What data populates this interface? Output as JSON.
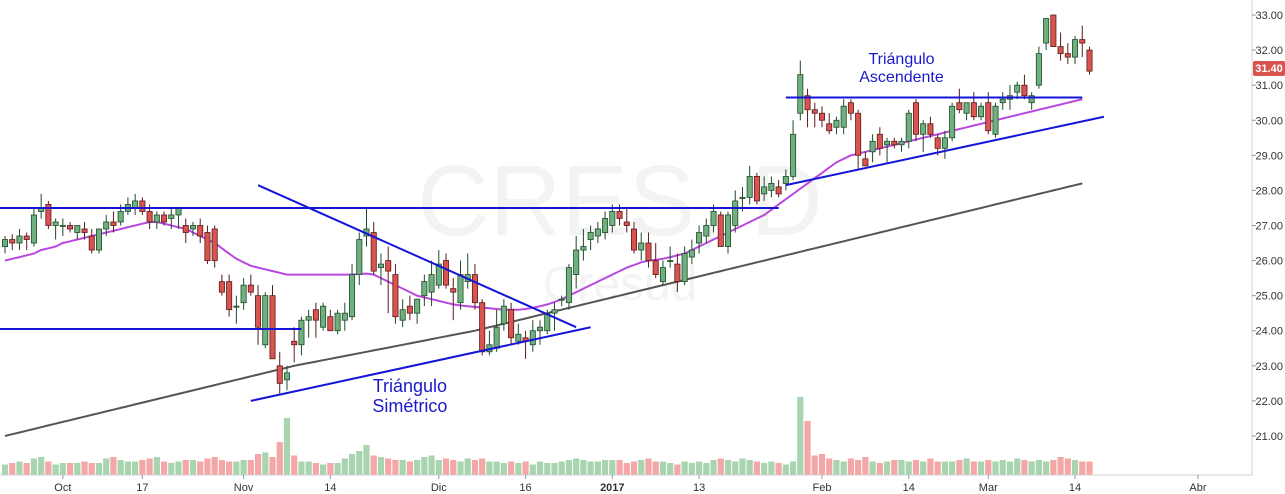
{
  "chart_data": {
    "type": "candlestick",
    "watermark": {
      "symbol": "CRES, D",
      "name": "Cresud"
    },
    "last_price_label": "31.40",
    "ylim": [
      20.6,
      33.2
    ],
    "y_ticks": [
      "21.00",
      "22.00",
      "23.00",
      "24.00",
      "25.00",
      "26.00",
      "27.00",
      "28.00",
      "29.00",
      "30.00",
      "31.00",
      "32.00",
      "33.00"
    ],
    "x_ticks": [
      {
        "i": 8,
        "label": "Oct"
      },
      {
        "i": 19,
        "label": "17"
      },
      {
        "i": 33,
        "label": "Nov"
      },
      {
        "i": 45,
        "label": "14"
      },
      {
        "i": 60,
        "label": "Dic"
      },
      {
        "i": 72,
        "label": "16"
      },
      {
        "i": 84,
        "label": "2017"
      },
      {
        "i": 96,
        "label": "13"
      },
      {
        "i": 113,
        "label": "Feb"
      },
      {
        "i": 125,
        "label": "14"
      },
      {
        "i": 136,
        "label": "Mar"
      },
      {
        "i": 148,
        "label": "14"
      },
      {
        "i": 165,
        "label": "Abr"
      }
    ],
    "candles": [
      [
        26.4,
        26.7,
        26.2,
        26.6
      ],
      [
        26.6,
        26.75,
        26.3,
        26.5
      ],
      [
        26.5,
        26.9,
        26.3,
        26.7
      ],
      [
        26.7,
        26.8,
        26.3,
        26.6
      ],
      [
        26.5,
        27.5,
        26.4,
        27.3
      ],
      [
        27.4,
        27.9,
        27.2,
        27.5
      ],
      [
        27.6,
        27.7,
        26.9,
        27.0
      ],
      [
        27.0,
        27.2,
        26.6,
        27.1
      ],
      [
        27.0,
        27.2,
        26.7,
        27.0
      ],
      [
        27.0,
        27.1,
        26.8,
        26.9
      ],
      [
        26.8,
        27.0,
        26.6,
        27.0
      ],
      [
        26.9,
        27.1,
        26.6,
        26.8
      ],
      [
        26.7,
        26.9,
        26.2,
        26.3
      ],
      [
        26.3,
        26.9,
        26.2,
        26.9
      ],
      [
        26.9,
        27.3,
        26.7,
        27.1
      ],
      [
        27.1,
        27.4,
        26.8,
        27.0
      ],
      [
        27.1,
        27.6,
        27.0,
        27.4
      ],
      [
        27.4,
        27.8,
        27.3,
        27.6
      ],
      [
        27.5,
        27.9,
        27.3,
        27.7
      ],
      [
        27.7,
        27.8,
        27.3,
        27.4
      ],
      [
        27.4,
        27.6,
        26.9,
        27.1
      ],
      [
        27.1,
        27.4,
        26.9,
        27.3
      ],
      [
        27.3,
        27.4,
        27.0,
        27.1
      ],
      [
        27.2,
        27.5,
        26.9,
        27.3
      ],
      [
        27.3,
        27.5,
        26.9,
        27.5
      ],
      [
        27.0,
        27.2,
        26.5,
        26.8
      ],
      [
        26.9,
        27.1,
        26.7,
        27.0
      ],
      [
        27.0,
        27.2,
        26.5,
        26.7
      ],
      [
        26.8,
        27.0,
        25.9,
        26.0
      ],
      [
        26.9,
        27.0,
        25.8,
        26.0
      ],
      [
        25.4,
        25.6,
        25.0,
        25.1
      ],
      [
        25.4,
        25.6,
        24.4,
        24.6
      ],
      [
        24.7,
        25.0,
        24.2,
        24.7
      ],
      [
        24.8,
        25.5,
        24.6,
        25.3
      ],
      [
        25.3,
        25.6,
        25.0,
        25.1
      ],
      [
        25.0,
        25.3,
        23.6,
        24.1
      ],
      [
        23.6,
        25.1,
        23.5,
        25.0
      ],
      [
        25.0,
        25.3,
        23.2,
        23.2
      ],
      [
        23.0,
        23.4,
        22.2,
        22.5
      ],
      [
        22.6,
        23.0,
        22.3,
        22.8
      ],
      [
        23.7,
        24.1,
        23.1,
        23.6
      ],
      [
        23.6,
        24.4,
        23.3,
        24.3
      ],
      [
        24.3,
        24.6,
        23.8,
        24.4
      ],
      [
        24.6,
        24.8,
        23.8,
        24.3
      ],
      [
        24.1,
        24.8,
        24.0,
        24.7
      ],
      [
        24.4,
        24.6,
        24.0,
        24.0
      ],
      [
        24.0,
        24.6,
        23.9,
        24.5
      ],
      [
        24.3,
        24.8,
        24.0,
        24.5
      ],
      [
        24.4,
        25.9,
        24.3,
        25.6
      ],
      [
        25.6,
        26.8,
        25.3,
        26.6
      ],
      [
        26.7,
        27.5,
        26.4,
        26.9
      ],
      [
        26.8,
        27.1,
        25.6,
        25.7
      ],
      [
        25.8,
        26.2,
        25.3,
        25.9
      ],
      [
        26.0,
        26.4,
        24.5,
        25.7
      ],
      [
        25.6,
        25.9,
        24.2,
        24.4
      ],
      [
        24.3,
        24.9,
        24.1,
        24.6
      ],
      [
        24.7,
        25.0,
        24.3,
        24.5
      ],
      [
        24.5,
        24.9,
        24.2,
        24.9
      ],
      [
        25.0,
        25.6,
        24.7,
        25.4
      ],
      [
        25.1,
        26.0,
        24.7,
        25.6
      ],
      [
        25.3,
        26.3,
        25.2,
        25.9
      ],
      [
        26.0,
        26.2,
        25.2,
        25.3
      ],
      [
        25.2,
        25.5,
        24.3,
        25.1
      ],
      [
        24.8,
        26.0,
        24.6,
        25.6
      ],
      [
        25.4,
        26.2,
        25.2,
        25.6
      ],
      [
        25.6,
        25.9,
        24.6,
        24.8
      ],
      [
        24.8,
        24.9,
        23.3,
        23.4
      ],
      [
        23.4,
        24.0,
        23.3,
        23.6
      ],
      [
        23.5,
        24.6,
        23.4,
        24.1
      ],
      [
        24.2,
        24.9,
        24.0,
        24.7
      ],
      [
        24.6,
        24.8,
        23.6,
        23.8
      ],
      [
        23.7,
        24.2,
        23.6,
        23.9
      ],
      [
        23.8,
        24.0,
        23.2,
        23.7
      ],
      [
        23.6,
        24.3,
        23.4,
        24.0
      ],
      [
        24.0,
        24.3,
        23.6,
        24.1
      ],
      [
        24.0,
        24.6,
        23.9,
        24.5
      ],
      [
        24.5,
        24.8,
        24.0,
        24.6
      ],
      [
        24.9,
        25.0,
        24.7,
        24.9
      ],
      [
        24.8,
        25.9,
        24.6,
        25.8
      ],
      [
        25.6,
        26.7,
        25.2,
        26.3
      ],
      [
        26.3,
        26.9,
        26.0,
        26.4
      ],
      [
        26.6,
        27.0,
        26.3,
        26.8
      ],
      [
        26.7,
        27.1,
        26.5,
        26.9
      ],
      [
        26.8,
        27.4,
        26.6,
        27.2
      ],
      [
        27.0,
        27.6,
        26.8,
        27.4
      ],
      [
        27.4,
        27.6,
        27.0,
        27.2
      ],
      [
        27.1,
        27.5,
        26.8,
        27.0
      ],
      [
        26.9,
        27.1,
        26.2,
        26.3
      ],
      [
        26.3,
        26.8,
        26.0,
        26.5
      ],
      [
        26.5,
        26.8,
        25.8,
        26.0
      ],
      [
        26.0,
        26.5,
        25.5,
        25.6
      ],
      [
        25.4,
        26.0,
        25.3,
        25.8
      ],
      [
        26.0,
        26.4,
        25.8,
        26.0
      ],
      [
        25.9,
        26.2,
        25.1,
        25.4
      ],
      [
        25.4,
        26.4,
        25.3,
        26.2
      ],
      [
        26.1,
        26.6,
        25.9,
        26.3
      ],
      [
        26.5,
        27.0,
        26.2,
        26.8
      ],
      [
        26.7,
        27.2,
        26.5,
        27.0
      ],
      [
        27.0,
        27.6,
        26.8,
        27.4
      ],
      [
        27.3,
        27.4,
        26.4,
        26.4
      ],
      [
        26.4,
        27.4,
        26.2,
        27.3
      ],
      [
        27.0,
        28.0,
        26.8,
        27.7
      ],
      [
        27.8,
        28.1,
        27.4,
        27.8
      ],
      [
        27.8,
        28.7,
        27.6,
        28.4
      ],
      [
        28.4,
        28.5,
        27.6,
        27.7
      ],
      [
        27.9,
        28.4,
        27.7,
        28.1
      ],
      [
        28.0,
        28.4,
        27.8,
        28.2
      ],
      [
        28.1,
        28.3,
        27.8,
        27.9
      ],
      [
        28.2,
        28.6,
        28.0,
        28.4
      ],
      [
        28.4,
        30.0,
        28.3,
        29.6
      ],
      [
        30.2,
        31.7,
        30.0,
        31.3
      ],
      [
        30.7,
        30.9,
        29.8,
        30.3
      ],
      [
        30.3,
        30.5,
        29.8,
        30.2
      ],
      [
        30.2,
        30.4,
        29.8,
        30.0
      ],
      [
        29.9,
        30.2,
        29.6,
        29.7
      ],
      [
        29.8,
        30.1,
        29.6,
        30.0
      ],
      [
        29.8,
        30.6,
        29.6,
        30.4
      ],
      [
        30.5,
        30.6,
        30.0,
        30.2
      ],
      [
        30.2,
        30.3,
        28.6,
        29.0
      ],
      [
        28.9,
        29.1,
        28.7,
        28.7
      ],
      [
        29.1,
        29.6,
        28.8,
        29.4
      ],
      [
        29.6,
        29.8,
        29.0,
        29.2
      ],
      [
        29.3,
        29.5,
        28.8,
        29.4
      ],
      [
        29.4,
        29.5,
        29.2,
        29.3
      ],
      [
        29.3,
        29.5,
        29.1,
        29.4
      ],
      [
        29.4,
        30.3,
        29.2,
        30.2
      ],
      [
        30.5,
        30.6,
        29.4,
        29.6
      ],
      [
        29.6,
        30.0,
        29.1,
        29.9
      ],
      [
        29.9,
        30.1,
        29.5,
        29.6
      ],
      [
        29.5,
        29.6,
        29.0,
        29.2
      ],
      [
        29.2,
        29.7,
        28.9,
        29.5
      ],
      [
        29.5,
        30.5,
        29.4,
        30.4
      ],
      [
        30.5,
        30.9,
        30.2,
        30.3
      ],
      [
        30.2,
        30.5,
        30.0,
        30.5
      ],
      [
        30.5,
        30.8,
        30.0,
        30.1
      ],
      [
        30.1,
        30.5,
        30.0,
        30.4
      ],
      [
        30.5,
        30.8,
        29.6,
        29.7
      ],
      [
        29.6,
        30.5,
        29.5,
        30.4
      ],
      [
        30.5,
        30.8,
        30.3,
        30.6
      ],
      [
        30.6,
        31.0,
        30.3,
        30.7
      ],
      [
        30.8,
        31.1,
        30.6,
        31.0
      ],
      [
        31.0,
        31.3,
        30.6,
        30.7
      ],
      [
        30.5,
        30.8,
        30.3,
        30.7
      ],
      [
        31.0,
        32.1,
        30.9,
        31.9
      ],
      [
        32.2,
        32.9,
        32.0,
        32.9
      ],
      [
        33.0,
        33.0,
        32.1,
        32.1
      ],
      [
        32.1,
        32.5,
        31.7,
        31.9
      ],
      [
        31.9,
        32.2,
        31.6,
        31.8
      ],
      [
        31.8,
        32.4,
        31.6,
        32.3
      ],
      [
        32.3,
        32.7,
        31.8,
        32.2
      ],
      [
        32.0,
        32.1,
        31.3,
        31.4
      ]
    ],
    "volume": [
      7,
      8,
      9,
      8,
      11,
      12,
      9,
      7,
      8,
      8,
      8,
      9,
      8,
      8,
      11,
      12,
      10,
      9,
      9,
      10,
      11,
      12,
      9,
      8,
      9,
      10,
      10,
      9,
      11,
      12,
      10,
      9,
      9,
      10,
      10,
      14,
      15,
      12,
      22,
      38,
      13,
      9,
      9,
      8,
      7,
      8,
      8,
      11,
      14,
      16,
      20,
      13,
      12,
      11,
      10,
      10,
      9,
      10,
      12,
      13,
      10,
      11,
      10,
      9,
      11,
      10,
      11,
      9,
      9,
      8,
      9,
      8,
      9,
      7,
      9,
      8,
      8,
      9,
      10,
      11,
      10,
      9,
      9,
      10,
      10,
      10,
      8,
      9,
      10,
      11,
      9,
      9,
      8,
      7,
      9,
      8,
      9,
      8,
      10,
      11,
      10,
      9,
      11,
      10,
      9,
      8,
      9,
      8,
      7,
      9,
      52,
      36,
      13,
      14,
      11,
      10,
      9,
      11,
      10,
      12,
      9,
      8,
      9,
      10,
      10,
      9,
      10,
      9,
      11,
      9,
      9,
      9,
      10,
      11,
      9,
      9,
      10,
      9,
      10,
      9,
      11,
      10,
      9,
      10,
      9,
      10,
      12,
      11,
      10,
      9,
      9,
      8,
      7
    ],
    "sma_pink": [
      26.0,
      26.05,
      26.1,
      26.15,
      26.2,
      26.3,
      26.35,
      26.4,
      26.5,
      26.55,
      26.6,
      26.65,
      26.7,
      26.75,
      26.8,
      26.85,
      26.9,
      26.95,
      27.0,
      27.05,
      27.1,
      27.1,
      27.05,
      27.0,
      26.95,
      26.9,
      26.8,
      26.7,
      26.6,
      26.5,
      26.35,
      26.2,
      26.05,
      25.95,
      25.85,
      25.8,
      25.75,
      25.7,
      25.65,
      25.6,
      25.6,
      25.6,
      25.6,
      25.6,
      25.6,
      25.6,
      25.6,
      25.6,
      25.6,
      25.62,
      25.63,
      25.6,
      25.5,
      25.4,
      25.3,
      25.2,
      25.1,
      25.0,
      24.95,
      24.9,
      24.85,
      24.8,
      24.75,
      24.72,
      24.7,
      24.68,
      24.66,
      24.64,
      24.62,
      24.6,
      24.6,
      24.6,
      24.62,
      24.65,
      24.7,
      24.75,
      24.82,
      24.9,
      25.0,
      25.1,
      25.2,
      25.3,
      25.4,
      25.5,
      25.6,
      25.7,
      25.8,
      25.87,
      25.95,
      26.0,
      26.02,
      26.05,
      26.1,
      26.15,
      26.2,
      26.3,
      26.4,
      26.5,
      26.6,
      26.7,
      26.8,
      26.9,
      27.0,
      27.1,
      27.2,
      27.3,
      27.45,
      27.6,
      27.75,
      27.9,
      28.05,
      28.2,
      28.35,
      28.5,
      28.65,
      28.8,
      28.9,
      29.0,
      29.05,
      29.1,
      29.15,
      29.2,
      29.25,
      29.3,
      29.35,
      29.4,
      29.45,
      29.5,
      29.55,
      29.6,
      29.65,
      29.7,
      29.75,
      29.8,
      29.85,
      29.9,
      29.95,
      30.0,
      30.05,
      30.1,
      30.15,
      30.2,
      30.25,
      30.3,
      30.35,
      30.4,
      30.45,
      30.5,
      30.55,
      30.6
    ],
    "sma_gray": [
      21.0,
      21.05,
      21.1,
      21.15,
      21.2,
      21.25,
      21.3,
      21.35,
      21.4,
      21.45,
      21.5,
      21.55,
      21.6,
      21.65,
      21.7,
      21.75,
      21.8,
      21.85,
      21.9,
      21.95,
      22.0,
      22.05,
      22.1,
      22.15,
      22.2,
      22.25,
      22.3,
      22.35,
      22.4,
      22.45,
      22.5,
      22.55,
      22.6,
      22.65,
      22.7,
      22.75,
      22.8,
      22.85,
      22.9,
      22.95,
      23.0,
      23.04,
      23.08,
      23.12,
      23.16,
      23.2,
      23.24,
      23.28,
      23.32,
      23.36,
      23.4,
      23.44,
      23.48,
      23.52,
      23.56,
      23.6,
      23.64,
      23.68,
      23.72,
      23.76,
      23.8,
      23.84,
      23.88,
      23.92,
      23.96,
      24.0,
      24.05,
      24.1,
      24.15,
      24.2,
      24.25,
      24.3,
      24.35,
      24.4,
      24.45,
      24.5,
      24.55,
      24.6,
      24.65,
      24.7,
      24.75,
      24.8,
      24.85,
      24.9,
      24.95,
      25.0,
      25.05,
      25.1,
      25.15,
      25.2,
      25.25,
      25.3,
      25.35,
      25.4,
      25.45,
      25.5,
      25.55,
      25.6,
      25.65,
      25.7,
      25.75,
      25.8,
      25.85,
      25.9,
      25.95,
      26.0,
      26.05,
      26.1,
      26.15,
      26.2,
      26.25,
      26.3,
      26.35,
      26.4,
      26.45,
      26.5,
      26.55,
      26.6,
      26.65,
      26.7,
      26.75,
      26.8,
      26.85,
      26.9,
      26.95,
      27.0,
      27.05,
      27.1,
      27.15,
      27.2,
      27.25,
      27.3,
      27.35,
      27.4,
      27.45,
      27.5,
      27.55,
      27.6,
      27.65,
      27.7,
      27.75,
      27.8,
      27.85,
      27.9,
      27.95,
      28.0,
      28.05,
      28.1,
      28.15,
      28.2
    ],
    "trendlines": [
      {
        "name": "resistance-long",
        "p1": [
          -1,
          27.5
        ],
        "p2": [
          107,
          27.5
        ]
      },
      {
        "name": "support-left",
        "p1": [
          -1,
          24.05
        ],
        "p2": [
          41,
          24.05
        ]
      },
      {
        "name": "sym-tri-upper",
        "p1": [
          35,
          28.15
        ],
        "p2": [
          79,
          24.1
        ]
      },
      {
        "name": "sym-tri-lower",
        "p1": [
          34,
          22.0
        ],
        "p2": [
          81,
          24.1
        ]
      },
      {
        "name": "asc-tri-upper",
        "p1": [
          108,
          30.65
        ],
        "p2": [
          149,
          30.65
        ]
      },
      {
        "name": "asc-tri-lower",
        "p1": [
          108,
          28.15
        ],
        "p2": [
          152,
          30.1
        ]
      }
    ],
    "annotations": [
      {
        "text": "Triángulo",
        "line2": "Simétrico",
        "i": 56,
        "y": 22.25
      },
      {
        "text": "Triángulo",
        "line2": "Ascendente",
        "i": 124,
        "y": 31.6
      }
    ]
  },
  "colors": {
    "up": "#6fb07f",
    "up_border": "#1f4a2a",
    "down": "#d9534f",
    "down_border": "#5a1c1a",
    "vol_up": "#a8d5b0",
    "vol_down": "#f4a7a7",
    "sma_pink": "#b848e0",
    "sma_gray": "#555555",
    "trend": "#1515d8",
    "price_tag": "#d9534f"
  }
}
